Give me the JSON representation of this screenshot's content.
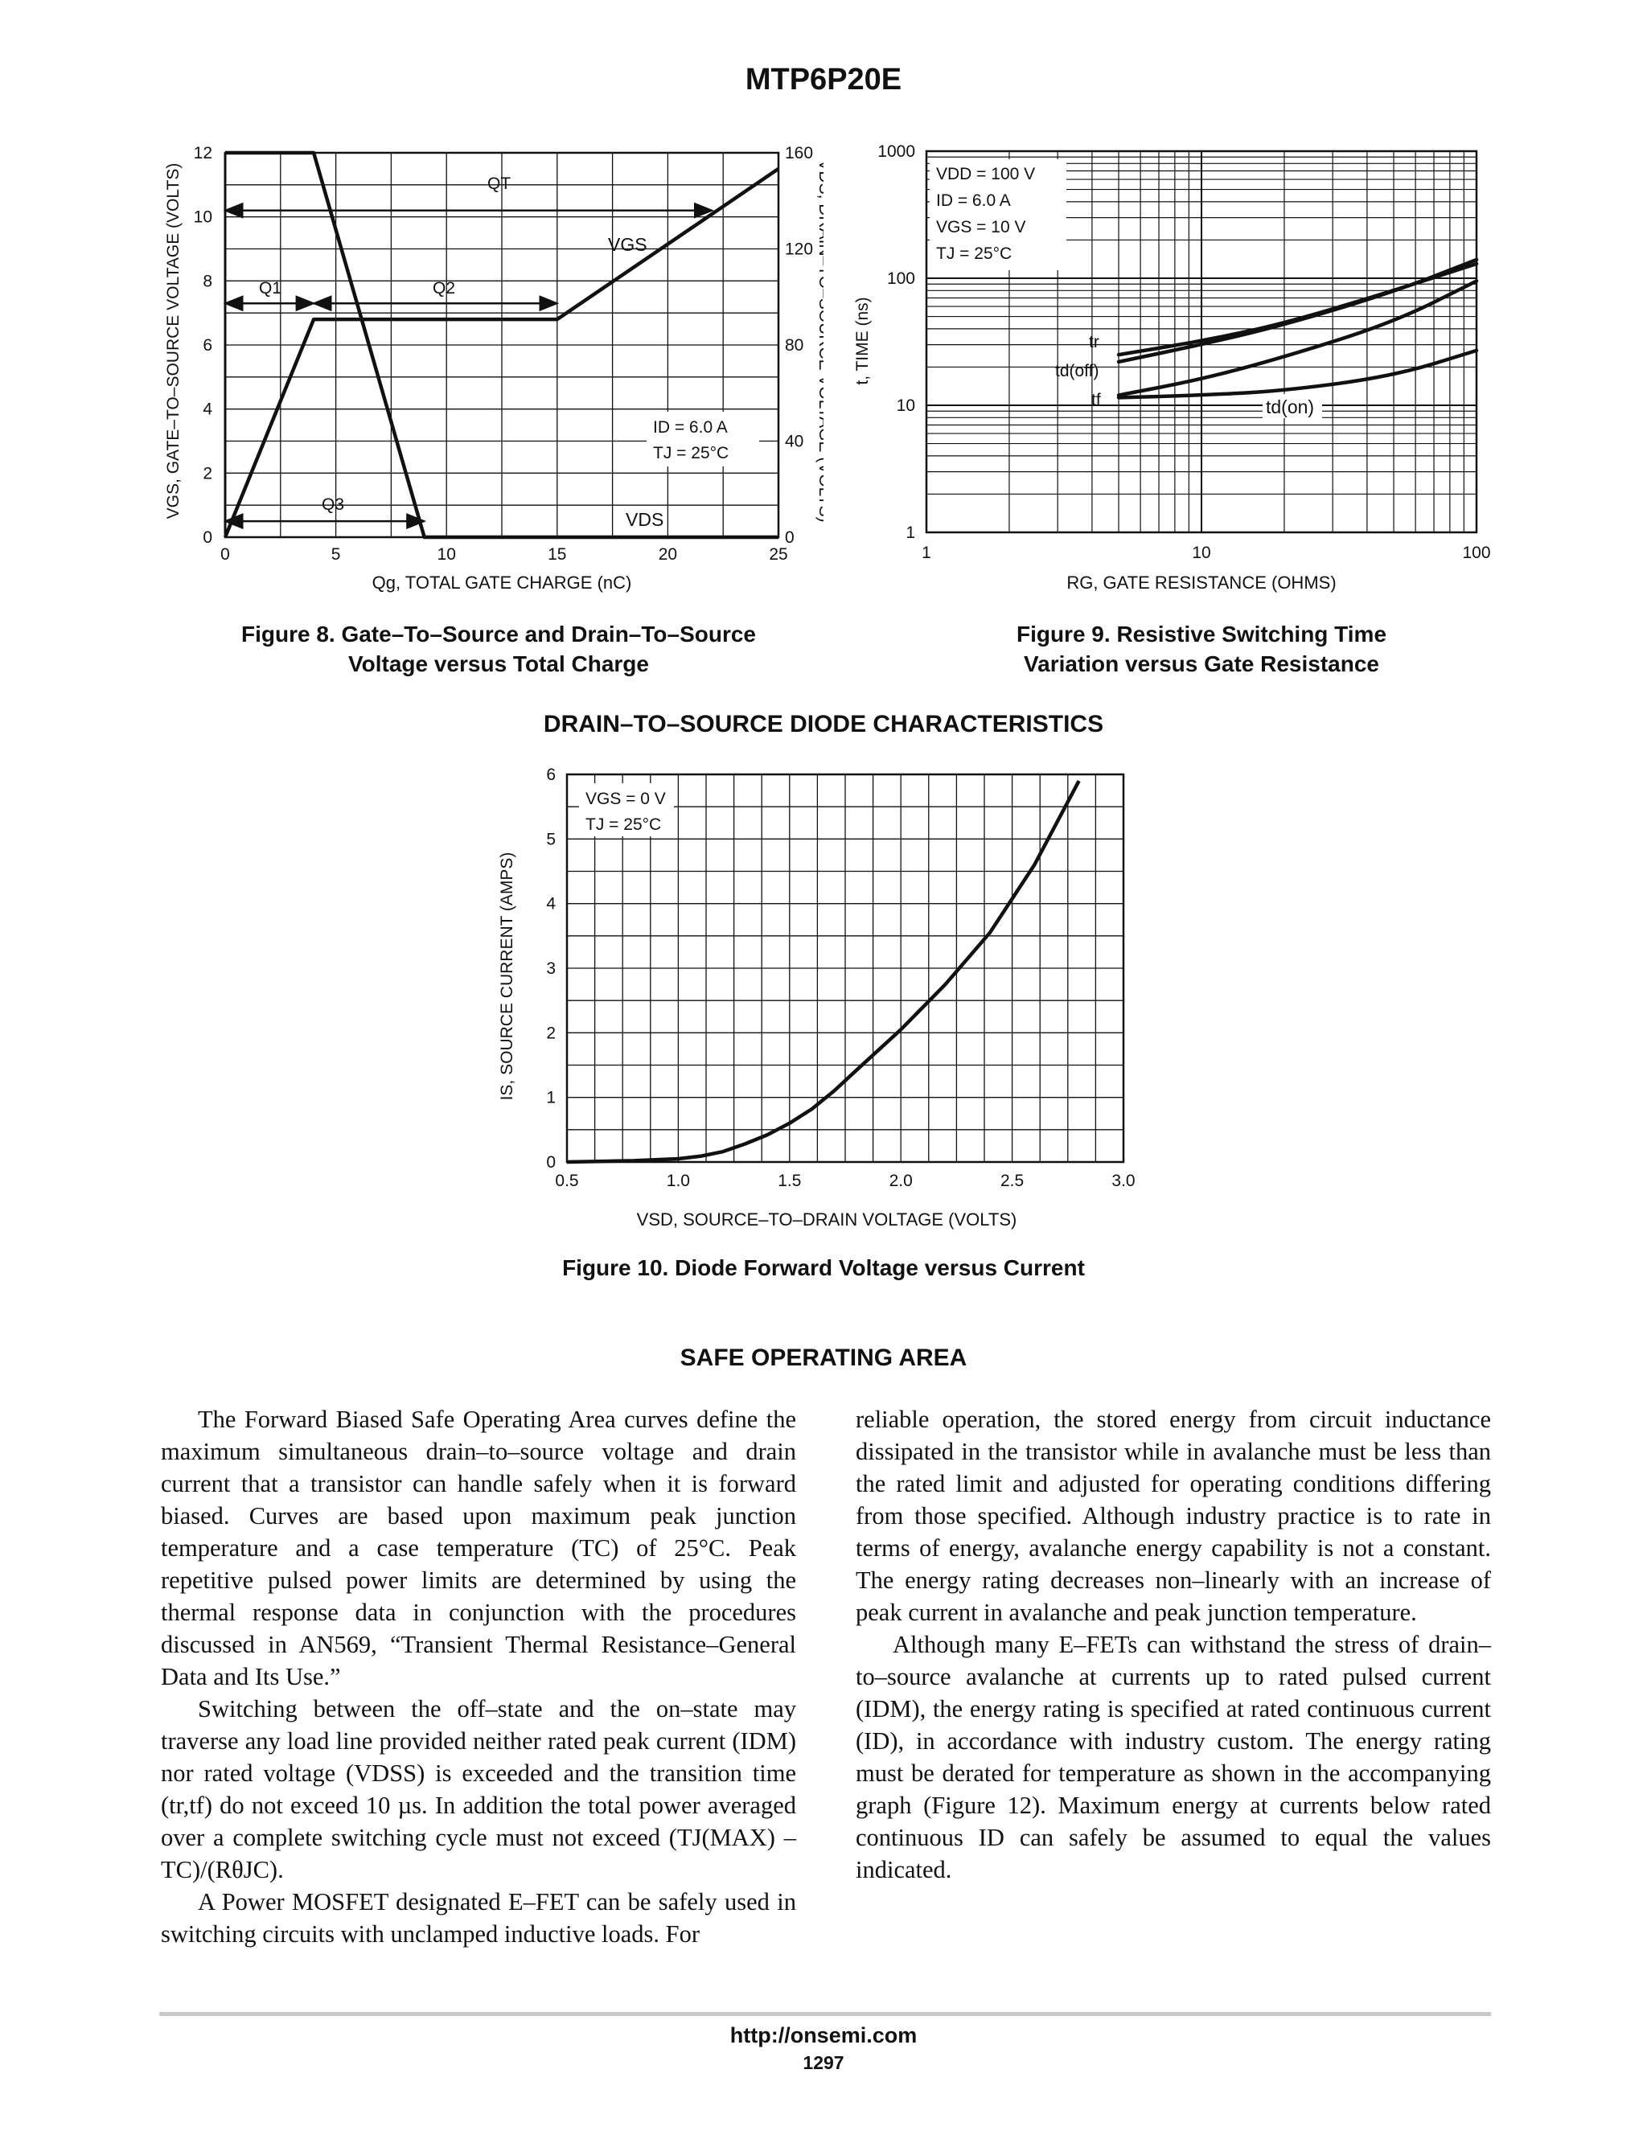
{
  "header": {
    "title": "MTP6P20E"
  },
  "fig8": {
    "caption_line1": "Figure 8. Gate–To–Source and Drain–To–Source",
    "caption_line2": "Voltage versus Total Charge",
    "left_axis_label": "VGS, GATE–TO–SOURCE VOLTAGE (VOLTS)",
    "right_axis_label": "VDS, DRAIN–TO–SOURCE VOLTAGE (VOLTS)",
    "x_axis_label": "Qg, TOTAL GATE CHARGE (nC)",
    "labels": {
      "qt": "QT",
      "q1": "Q1",
      "q2": "Q2",
      "q3": "Q3",
      "vgs": "VGS",
      "vds": "VDS"
    },
    "conditions": [
      "ID = 6.0 A",
      "TJ = 25°C"
    ]
  },
  "fig9": {
    "caption_line1": "Figure 9. Resistive Switching Time",
    "caption_line2": "Variation versus Gate Resistance",
    "y_axis_label": "t, TIME (ns)",
    "x_axis_label": "RG, GATE RESISTANCE (OHMS)",
    "conditions": [
      "VDD = 100 V",
      "ID = 6.0 A",
      "VGS = 10 V",
      "TJ = 25°C"
    ],
    "curve_labels": {
      "tr": "tr",
      "tdoff": "td(off)",
      "tf": "tf",
      "tdon": "td(on)"
    }
  },
  "fig10": {
    "section_heading": "DRAIN–TO–SOURCE DIODE CHARACTERISTICS",
    "caption": "Figure 10. Diode Forward Voltage versus Current",
    "y_axis_label": "IS, SOURCE CURRENT (AMPS)",
    "x_axis_label": "VSD, SOURCE–TO–DRAIN VOLTAGE (VOLTS)",
    "conditions": [
      "VGS = 0 V",
      "TJ = 25°C"
    ]
  },
  "chart_data": [
    {
      "type": "line",
      "title": "",
      "xlabel": "Qg, TOTAL GATE CHARGE (nC)",
      "ylabel": "VGS, GATE–TO–SOURCE VOLTAGE (VOLTS)",
      "y2label": "VDS, DRAIN–TO–SOURCE VOLTAGE (VOLTS)",
      "xlim": [
        0,
        25
      ],
      "ylim": [
        0,
        12
      ],
      "y2lim": [
        0,
        160
      ],
      "xticks": [
        0,
        5,
        10,
        15,
        20,
        25
      ],
      "yticks": [
        0,
        2,
        4,
        6,
        8,
        10,
        12
      ],
      "y2ticks": [
        0,
        40,
        80,
        120,
        160
      ],
      "grid": true,
      "series": [
        {
          "name": "VGS",
          "axis": "left",
          "x": [
            0,
            4,
            15,
            25
          ],
          "y": [
            0,
            6.8,
            6.8,
            11.5
          ]
        },
        {
          "name": "VDS",
          "axis": "right",
          "x": [
            0,
            4,
            9,
            25
          ],
          "y": [
            160,
            160,
            0,
            0
          ]
        }
      ],
      "annotations": {
        "QT": [
          0,
          22
        ],
        "Q1": [
          0,
          4
        ],
        "Q2": [
          4,
          15
        ],
        "Q3": [
          0,
          9
        ],
        "QT_y": 10.2,
        "Q1_y": 7.3,
        "Q2_y": 7.3,
        "Q3_y": 0.5
      }
    },
    {
      "type": "line",
      "title": "",
      "xlabel": "RG, GATE RESISTANCE (OHMS)",
      "ylabel": "t, TIME (ns)",
      "xscale": "log",
      "yscale": "log",
      "xlim": [
        1,
        100
      ],
      "ylim": [
        1,
        1000
      ],
      "xticks": [
        1,
        10,
        100
      ],
      "yticks": [
        1,
        10,
        100,
        1000
      ],
      "grid": true,
      "series": [
        {
          "name": "tr",
          "x": [
            5,
            10,
            20,
            50,
            100
          ],
          "y": [
            25,
            32,
            44,
            80,
            130
          ]
        },
        {
          "name": "td(off)",
          "x": [
            5,
            10,
            20,
            50,
            100
          ],
          "y": [
            22,
            30,
            43,
            78,
            140
          ]
        },
        {
          "name": "tf",
          "x": [
            5,
            10,
            20,
            50,
            100
          ],
          "y": [
            12,
            16,
            24,
            45,
            95
          ]
        },
        {
          "name": "td(on)",
          "x": [
            5,
            10,
            20,
            50,
            100
          ],
          "y": [
            11.5,
            12,
            13,
            17,
            27
          ]
        }
      ]
    },
    {
      "type": "line",
      "title": "",
      "xlabel": "VSD, SOURCE–TO–DRAIN VOLTAGE (VOLTS)",
      "ylabel": "IS, SOURCE CURRENT (AMPS)",
      "xlim": [
        0.5,
        3.0
      ],
      "ylim": [
        0,
        6
      ],
      "xticks": [
        0.5,
        1.0,
        1.5,
        2.0,
        2.5,
        3.0
      ],
      "yticks": [
        0,
        1,
        2,
        3,
        4,
        5,
        6
      ],
      "grid": true,
      "series": [
        {
          "name": "IS",
          "x": [
            0.5,
            0.8,
            1.0,
            1.1,
            1.2,
            1.3,
            1.4,
            1.5,
            1.6,
            1.7,
            1.8,
            2.0,
            2.2,
            2.4,
            2.6,
            2.8
          ],
          "y": [
            0,
            0.02,
            0.05,
            0.09,
            0.16,
            0.28,
            0.42,
            0.6,
            0.82,
            1.1,
            1.42,
            2.05,
            2.75,
            3.55,
            4.6,
            5.9
          ]
        }
      ]
    }
  ],
  "soa": {
    "heading": "SAFE OPERATING AREA",
    "left_paragraphs": [
      "The Forward Biased Safe Operating Area curves define the maximum simultaneous drain–to–source voltage and drain current that a transistor can handle safely when it is forward biased. Curves are based upon maximum peak junction temperature and a case temperature (TC) of 25°C. Peak repetitive pulsed power limits are determined by using the thermal response data in conjunction with the procedures discussed in AN569, “Transient Thermal Resistance–General Data and Its Use.”",
      "Switching between the off–state and the on–state may traverse any load line provided neither rated peak current (IDM) nor rated voltage (VDSS) is exceeded and the transition time (tr,tf) do not exceed 10 µs. In addition the total power averaged over a complete switching cycle must not exceed (TJ(MAX) – TC)/(RθJC).",
      "A Power MOSFET designated E–FET can be safely used in switching circuits with unclamped inductive loads. For"
    ],
    "right_paragraphs": [
      "reliable operation, the stored energy from circuit inductance dissipated in the transistor while in avalanche must be less than the rated limit and adjusted for operating conditions differing from those specified. Although industry practice is to rate in terms of energy, avalanche energy capability is not a constant. The energy rating decreases non–linearly with an increase of peak current in avalanche and peak junction temperature.",
      "Although many E–FETs can withstand the stress of drain–to–source avalanche at currents up to rated pulsed current (IDM), the energy rating is specified at rated continuous current (ID), in accordance with industry custom. The energy rating must be derated for temperature as shown in the accompanying graph (Figure 12). Maximum energy at currents below rated continuous ID can safely be assumed to equal the values indicated."
    ]
  },
  "footer": {
    "url": "http://onsemi.com",
    "page": "1297"
  }
}
